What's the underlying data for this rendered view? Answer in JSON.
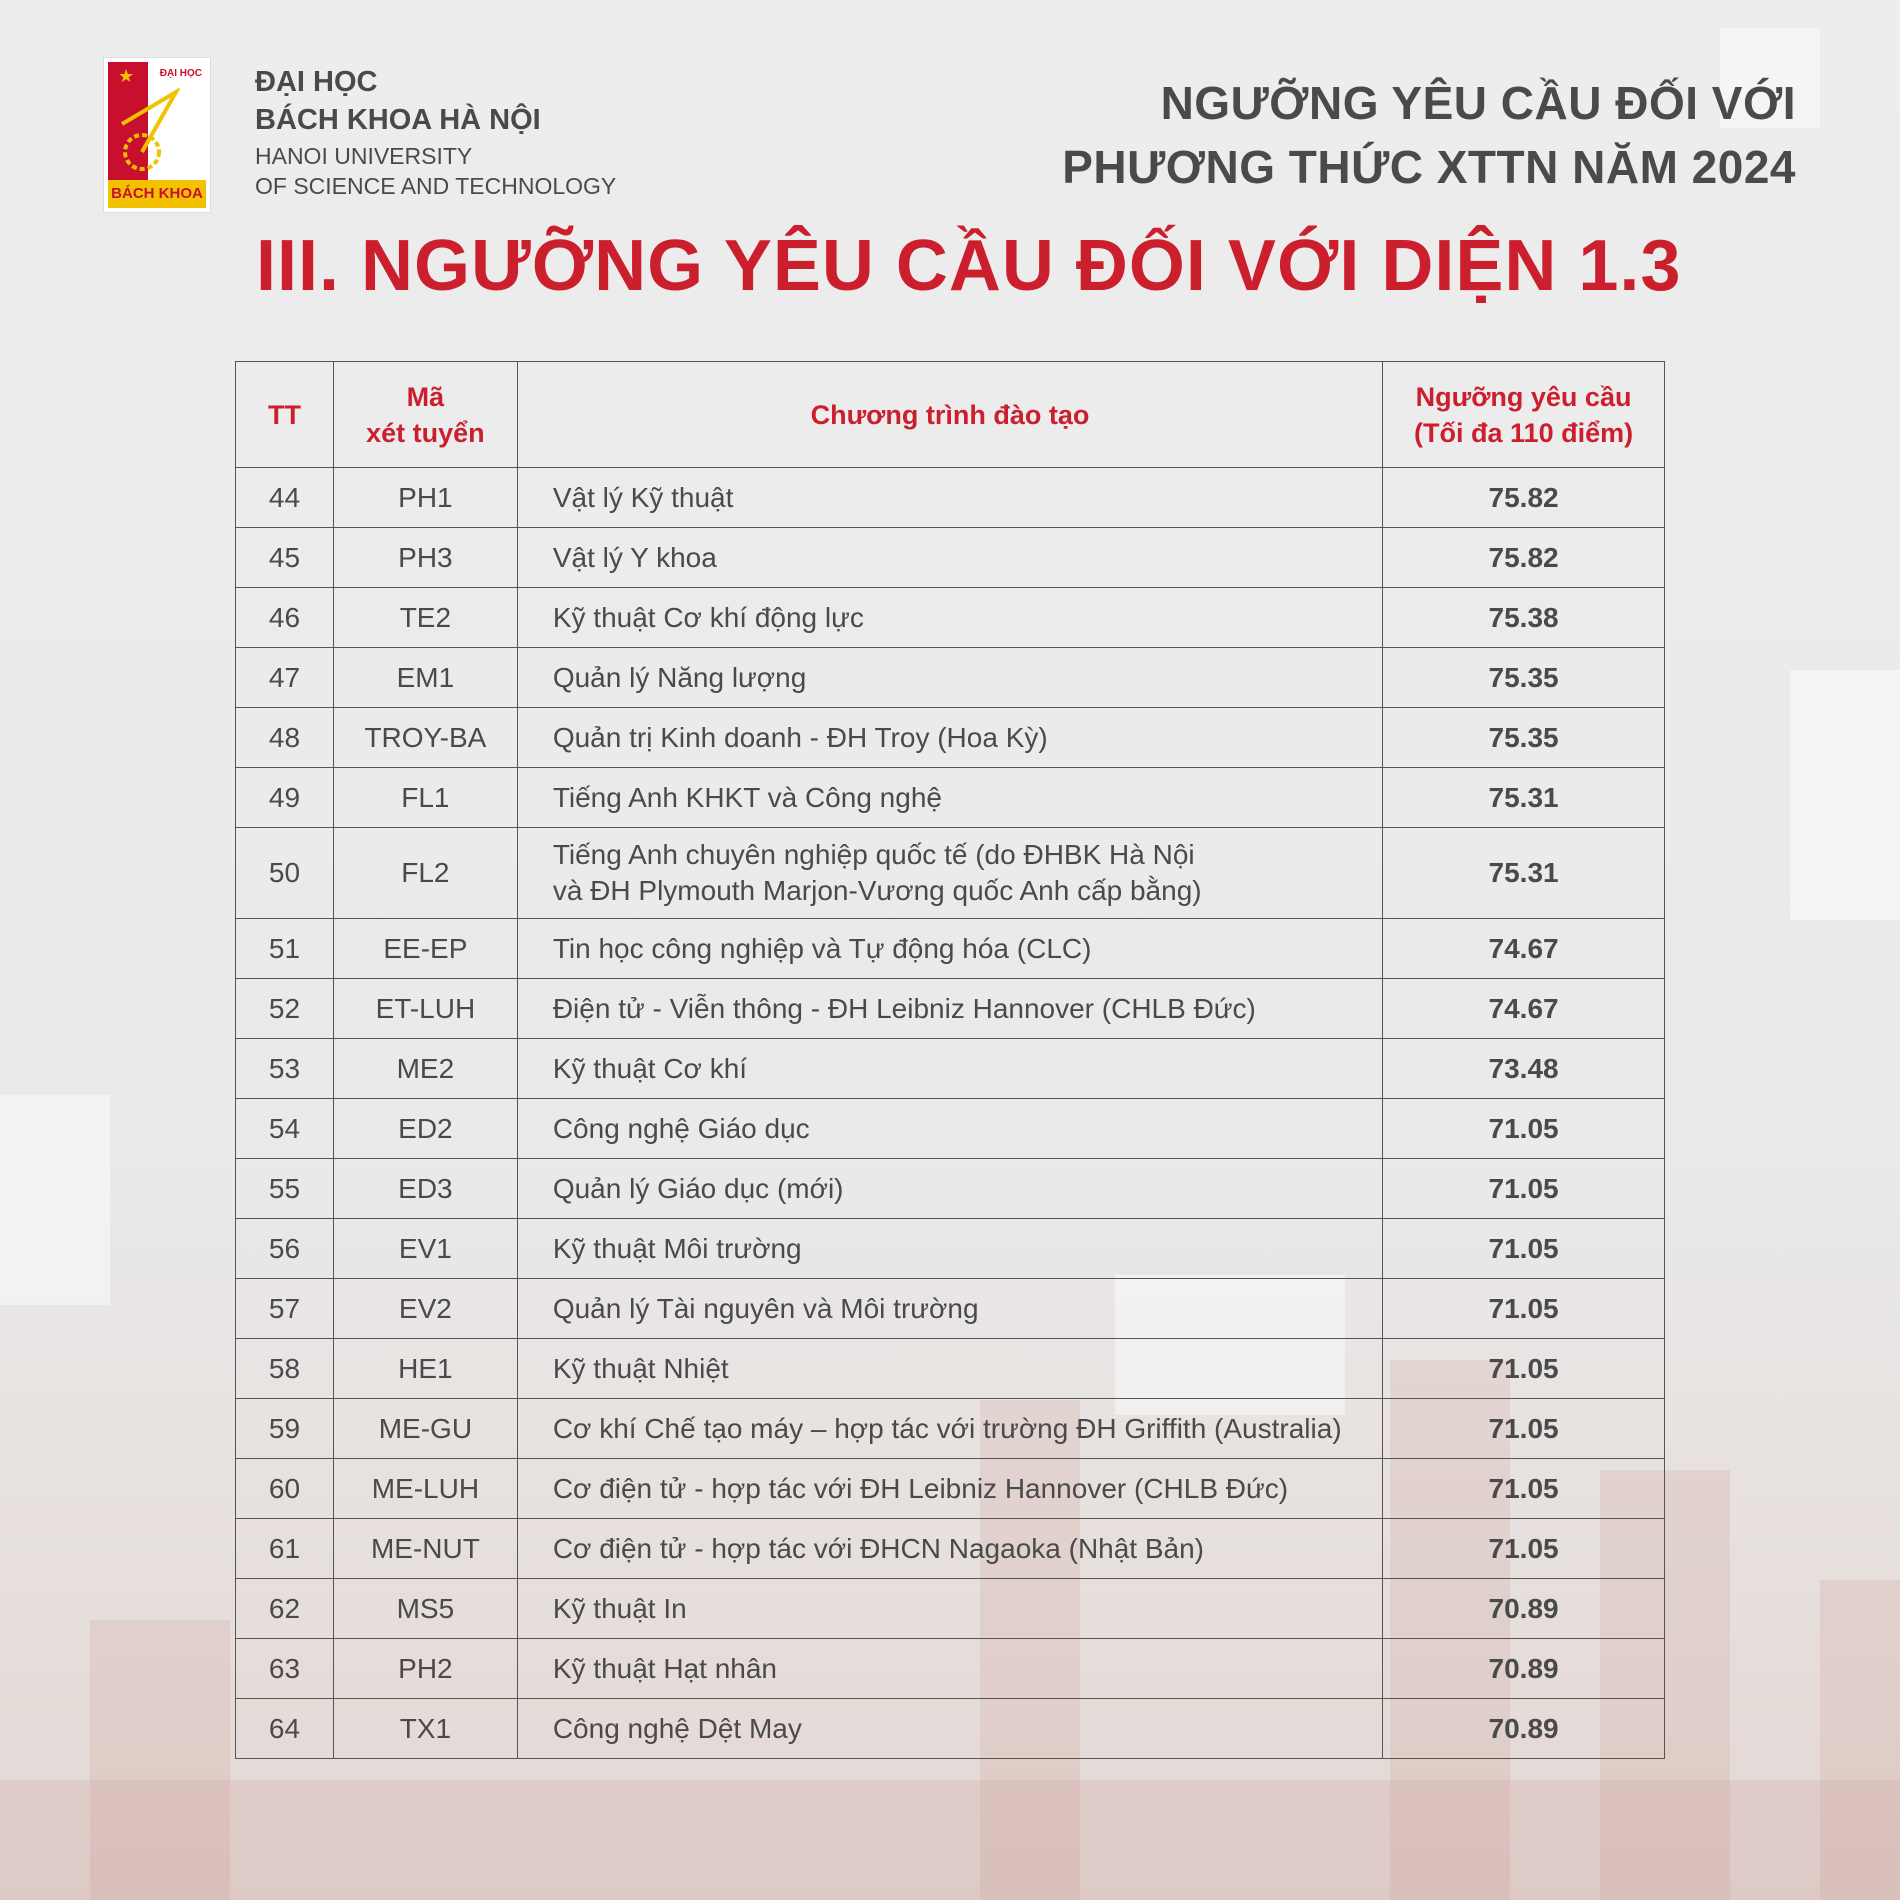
{
  "logo": {
    "top_text": "ĐẠI HỌC",
    "bottom_text": "BÁCH KHOA",
    "colors": {
      "red": "#c8102e",
      "yellow": "#f2c200"
    }
  },
  "university": {
    "line1": "ĐẠI HỌC",
    "line2": "BÁCH KHOA HÀ NỘI",
    "line3": "HANOI UNIVERSITY",
    "line4": "OF SCIENCE AND TECHNOLOGY"
  },
  "header": {
    "line1": "NGƯỠNG YÊU CẦU ĐỐI VỚI",
    "line2": "PHƯƠNG THỨC XTTN NĂM 2024"
  },
  "title": "III. NGƯỠNG YÊU CẦU ĐỐI VỚI DIỆN 1.3",
  "accent_color": "#cc1f2d",
  "table": {
    "headers": {
      "tt": "TT",
      "code_1": "Mã",
      "code_2": "xét tuyển",
      "program": "Chương trình đào tạo",
      "threshold_1": "Ngưỡng yêu cầu",
      "threshold_2": "(Tối đa 110 điểm)"
    },
    "rows": [
      {
        "tt": "44",
        "code": "PH1",
        "program": "Vật lý Kỹ thuật",
        "score": "75.82"
      },
      {
        "tt": "45",
        "code": "PH3",
        "program": "Vật lý Y khoa",
        "score": "75.82"
      },
      {
        "tt": "46",
        "code": "TE2",
        "program": "Kỹ thuật Cơ khí động lực",
        "score": "75.38"
      },
      {
        "tt": "47",
        "code": "EM1",
        "program": "Quản lý Năng lượng",
        "score": "75.35"
      },
      {
        "tt": "48",
        "code": "TROY-BA",
        "program": "Quản trị Kinh doanh - ĐH Troy (Hoa Kỳ)",
        "score": "75.35"
      },
      {
        "tt": "49",
        "code": "FL1",
        "program": "Tiếng Anh KHKT và Công nghệ",
        "score": "75.31"
      },
      {
        "tt": "50",
        "code": "FL2",
        "program": "Tiếng Anh chuyên nghiệp quốc tế (do ĐHBK Hà Nội",
        "program_2": "và ĐH Plymouth Marjon-Vương quốc Anh cấp bằng)",
        "score": "75.31"
      },
      {
        "tt": "51",
        "code": "EE-EP",
        "program": "Tin học công nghiệp và Tự động hóa (CLC)",
        "score": "74.67"
      },
      {
        "tt": "52",
        "code": "ET-LUH",
        "program": "Điện tử - Viễn thông - ĐH Leibniz Hannover (CHLB Đức)",
        "score": "74.67"
      },
      {
        "tt": "53",
        "code": "ME2",
        "program": "Kỹ thuật Cơ khí",
        "score": "73.48"
      },
      {
        "tt": "54",
        "code": "ED2",
        "program": "Công nghệ Giáo dục",
        "score": "71.05"
      },
      {
        "tt": "55",
        "code": "ED3",
        "program": "Quản lý Giáo dục (mới)",
        "score": "71.05"
      },
      {
        "tt": "56",
        "code": "EV1",
        "program": "Kỹ thuật Môi trường",
        "score": "71.05"
      },
      {
        "tt": "57",
        "code": "EV2",
        "program": "Quản lý Tài nguyên và Môi trường",
        "score": "71.05"
      },
      {
        "tt": "58",
        "code": "HE1",
        "program": "Kỹ thuật Nhiệt",
        "score": "71.05"
      },
      {
        "tt": "59",
        "code": "ME-GU",
        "program": "Cơ khí Chế tạo máy – hợp tác với trường ĐH Griffith (Australia)",
        "score": "71.05"
      },
      {
        "tt": "60",
        "code": "ME-LUH",
        "program": "Cơ điện tử - hợp tác với ĐH Leibniz Hannover (CHLB Đức)",
        "score": "71.05"
      },
      {
        "tt": "61",
        "code": "ME-NUT",
        "program": "Cơ điện tử - hợp tác với ĐHCN Nagaoka (Nhật Bản)",
        "score": "71.05"
      },
      {
        "tt": "62",
        "code": "MS5",
        "program": "Kỹ thuật In",
        "score": "70.89"
      },
      {
        "tt": "63",
        "code": "PH2",
        "program": "Kỹ thuật Hạt nhân",
        "score": "70.89"
      },
      {
        "tt": "64",
        "code": "TX1",
        "program": "Công nghệ Dệt May",
        "score": "70.89"
      }
    ]
  }
}
